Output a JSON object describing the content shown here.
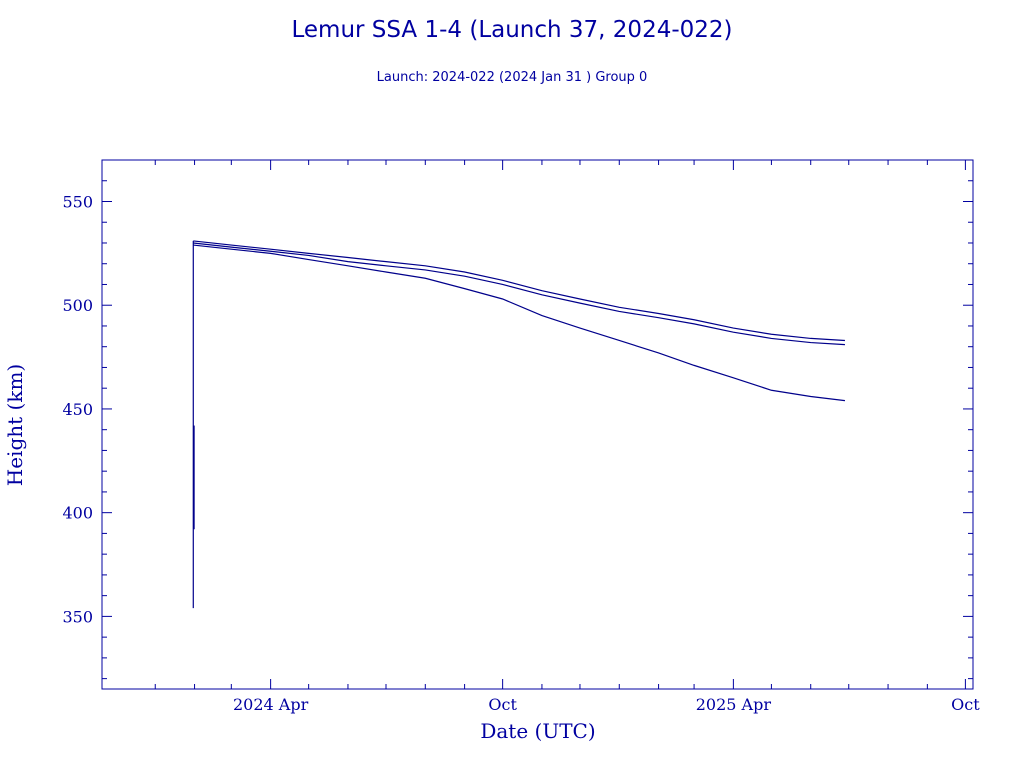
{
  "chart_data": {
    "type": "line",
    "title": "Lemur SSA 1-4 (Launch 37, 2024-022)",
    "subtitle": "Launch: 2024-022  (2024 Jan 31 )  Group 0",
    "xlabel": "Date (UTC)",
    "ylabel": "Height (km)",
    "xlim": [
      "2023-11-20",
      "2025-10-07"
    ],
    "ylim": [
      315,
      570
    ],
    "x_ticks_major": [
      {
        "date": "2024-04-01",
        "label": "2024 Apr"
      },
      {
        "date": "2024-10-01",
        "label": "Oct"
      },
      {
        "date": "2025-04-01",
        "label": "2025 Apr"
      },
      {
        "date": "2025-10-01",
        "label": "Oct"
      }
    ],
    "x_ticks_minor": [
      "2024-01-01",
      "2024-02-01",
      "2024-03-01",
      "2024-05-01",
      "2024-06-01",
      "2024-07-01",
      "2024-08-01",
      "2024-09-01",
      "2024-11-01",
      "2024-12-01",
      "2025-01-01",
      "2025-02-01",
      "2025-03-01",
      "2025-05-01",
      "2025-06-01",
      "2025-07-01",
      "2025-08-01",
      "2025-09-01"
    ],
    "y_ticks_major": [
      350,
      400,
      450,
      500,
      550
    ],
    "y_ticks_minor": [
      320,
      330,
      340,
      360,
      370,
      380,
      390,
      410,
      420,
      430,
      440,
      460,
      470,
      480,
      490,
      510,
      520,
      530,
      540,
      560
    ],
    "launch_spike": {
      "date": "2024-01-31",
      "low": 354,
      "high": 531
    },
    "series": [
      {
        "values": [
          {
            "x": "2024-01-31",
            "y": 531
          },
          {
            "x": "2024-03-01",
            "y": 529
          },
          {
            "x": "2024-04-01",
            "y": 527
          },
          {
            "x": "2024-05-01",
            "y": 525
          },
          {
            "x": "2024-06-01",
            "y": 523
          },
          {
            "x": "2024-07-01",
            "y": 521
          },
          {
            "x": "2024-08-01",
            "y": 519
          },
          {
            "x": "2024-09-01",
            "y": 516
          },
          {
            "x": "2024-10-01",
            "y": 512
          },
          {
            "x": "2024-11-01",
            "y": 507
          },
          {
            "x": "2024-12-01",
            "y": 503
          },
          {
            "x": "2025-01-01",
            "y": 499
          },
          {
            "x": "2025-02-01",
            "y": 496
          },
          {
            "x": "2025-03-01",
            "y": 493
          },
          {
            "x": "2025-04-01",
            "y": 489
          },
          {
            "x": "2025-05-01",
            "y": 486
          },
          {
            "x": "2025-06-01",
            "y": 484
          },
          {
            "x": "2025-06-28",
            "y": 483
          }
        ]
      },
      {
        "values": [
          {
            "x": "2024-01-31",
            "y": 530
          },
          {
            "x": "2024-03-01",
            "y": 528
          },
          {
            "x": "2024-04-01",
            "y": 526
          },
          {
            "x": "2024-05-01",
            "y": 524
          },
          {
            "x": "2024-06-01",
            "y": 521
          },
          {
            "x": "2024-07-01",
            "y": 519
          },
          {
            "x": "2024-08-01",
            "y": 517
          },
          {
            "x": "2024-09-01",
            "y": 514
          },
          {
            "x": "2024-10-01",
            "y": 510
          },
          {
            "x": "2024-11-01",
            "y": 505
          },
          {
            "x": "2024-12-01",
            "y": 501
          },
          {
            "x": "2025-01-01",
            "y": 497
          },
          {
            "x": "2025-02-01",
            "y": 494
          },
          {
            "x": "2025-03-01",
            "y": 491
          },
          {
            "x": "2025-04-01",
            "y": 487
          },
          {
            "x": "2025-05-01",
            "y": 484
          },
          {
            "x": "2025-06-01",
            "y": 482
          },
          {
            "x": "2025-06-28",
            "y": 481
          }
        ]
      },
      {
        "values": [
          {
            "x": "2024-01-31",
            "y": 529
          },
          {
            "x": "2024-03-01",
            "y": 527
          },
          {
            "x": "2024-04-01",
            "y": 525
          },
          {
            "x": "2024-05-01",
            "y": 522
          },
          {
            "x": "2024-06-01",
            "y": 519
          },
          {
            "x": "2024-07-01",
            "y": 516
          },
          {
            "x": "2024-08-01",
            "y": 513
          },
          {
            "x": "2024-09-01",
            "y": 508
          },
          {
            "x": "2024-10-01",
            "y": 503
          },
          {
            "x": "2024-11-01",
            "y": 495
          },
          {
            "x": "2024-12-01",
            "y": 489
          },
          {
            "x": "2025-01-01",
            "y": 483
          },
          {
            "x": "2025-02-01",
            "y": 477
          },
          {
            "x": "2025-03-01",
            "y": 471
          },
          {
            "x": "2025-04-01",
            "y": 465
          },
          {
            "x": "2025-05-01",
            "y": 459
          },
          {
            "x": "2025-06-01",
            "y": 456
          },
          {
            "x": "2025-06-28",
            "y": 454
          }
        ]
      }
    ]
  }
}
